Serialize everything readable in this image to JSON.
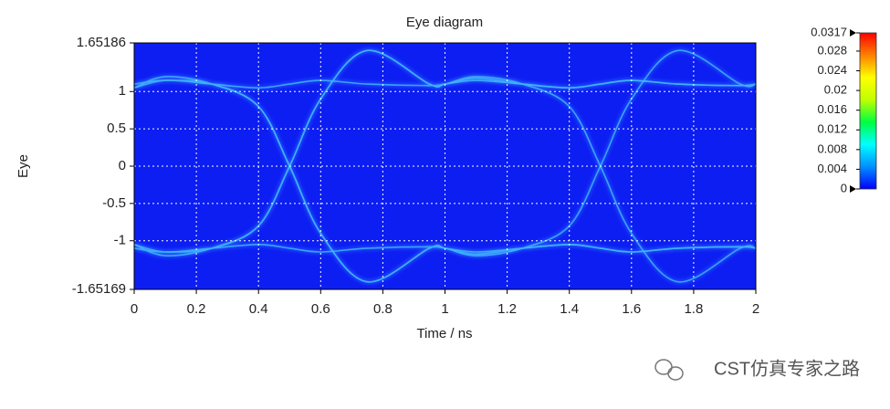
{
  "chart_data": {
    "type": "eye",
    "title": "Eye diagram",
    "xlabel": "Time / ns",
    "ylabel": "Eye",
    "xlim": [
      0,
      2
    ],
    "xticks": [
      0,
      0.2,
      0.4,
      0.6,
      0.8,
      1,
      1.2,
      1.4,
      1.6,
      1.8,
      2
    ],
    "ylim": [
      -1.65169,
      1.65186
    ],
    "yticks": [
      -1.65169,
      -1,
      -0.5,
      0,
      0.5,
      1,
      1.65186
    ],
    "grid": true,
    "background": "#0d1ef2",
    "trace_color": "#3fb4ff",
    "x": [
      0,
      0.1,
      0.25,
      0.4,
      0.5,
      0.6,
      0.75,
      0.95,
      1,
      1.1,
      1.25,
      1.4,
      1.5,
      1.6,
      1.75,
      1.95,
      2
    ],
    "traces": [
      {
        "y": [
          1.05,
          1.15,
          1.1,
          1.05,
          1.1,
          1.15,
          1.1,
          1.08,
          1.1,
          1.15,
          1.1,
          1.05,
          1.1,
          1.15,
          1.1,
          1.08,
          1.1
        ]
      },
      {
        "y": [
          -1.05,
          -1.15,
          -1.1,
          -1.05,
          -1.1,
          -1.15,
          -1.1,
          -1.08,
          -1.1,
          -1.15,
          -1.1,
          -1.05,
          -1.1,
          -1.15,
          -1.1,
          -1.08,
          -1.1
        ]
      },
      {
        "y": [
          -1.1,
          -1.15,
          -1.1,
          -0.8,
          0,
          0.9,
          1.55,
          1.1,
          1.1,
          1.2,
          1.1,
          0.8,
          0,
          -0.9,
          -1.55,
          -1.1,
          -1.1
        ]
      },
      {
        "y": [
          1.1,
          1.15,
          1.1,
          0.8,
          0,
          -0.9,
          -1.55,
          -1.1,
          -1.1,
          -1.2,
          -1.1,
          -0.8,
          0,
          0.9,
          1.55,
          1.1,
          1.1
        ]
      },
      {
        "y": [
          -1.05,
          -1.2,
          -1.1,
          -0.8,
          0,
          0.9,
          1.55,
          1.1,
          1.1,
          1.18,
          1.1,
          1.05,
          1.1,
          1.15,
          1.1,
          1.08,
          1.1
        ]
      },
      {
        "y": [
          1.05,
          1.2,
          1.1,
          0.8,
          0,
          -0.9,
          -1.55,
          -1.1,
          -1.1,
          -1.18,
          -1.1,
          -1.05,
          -1.1,
          -1.15,
          -1.1,
          -1.08,
          -1.1
        ]
      }
    ],
    "clim": [
      0,
      0.0317
    ],
    "cticks": [
      0,
      0.004,
      0.008,
      0.012,
      0.016,
      0.02,
      0.024,
      0.028,
      0.0317
    ],
    "colormap": [
      "#0000ff",
      "#0090ff",
      "#00ffff",
      "#00ff40",
      "#c0ff00",
      "#ffff00",
      "#ff8000",
      "#ff0000"
    ],
    "watermark": "CST仿真专家之路"
  }
}
